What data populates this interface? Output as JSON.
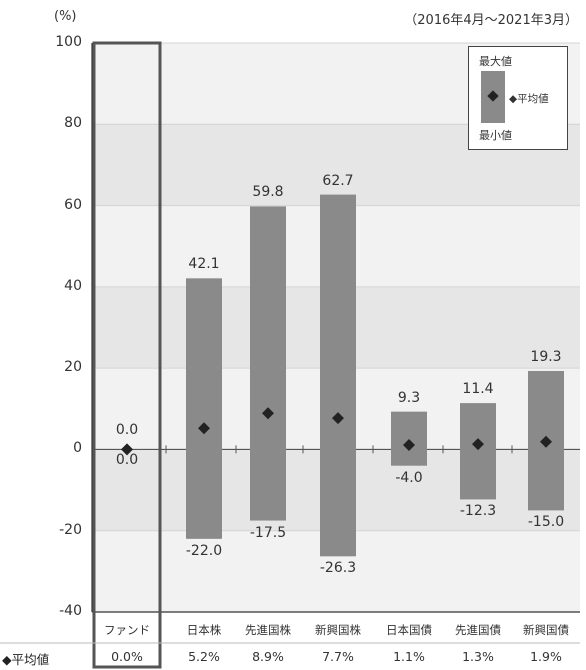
{
  "header": {
    "unit": "(%)",
    "period": "（2016年4月〜2021年3月）"
  },
  "legend": {
    "max": "最大値",
    "avg": "◆平均値",
    "min": "最小値"
  },
  "avg_row_label": "◆平均値",
  "colors": {
    "bar": "#8a8a8a",
    "band_dark": "#e6e6e6",
    "band_light": "#f2f2f2",
    "marker": "#222222",
    "frame": "#555555"
  },
  "chart_data": {
    "type": "bar",
    "subtype": "range-with-average",
    "categories": [
      "ファンド",
      "日本株",
      "先進国株",
      "新興国株",
      "日本国債",
      "先進国債",
      "新興国債"
    ],
    "max_values": [
      0.0,
      42.1,
      59.8,
      62.7,
      9.3,
      11.4,
      19.3
    ],
    "min_values": [
      0.0,
      -22.0,
      -17.5,
      -26.3,
      -4.0,
      -12.3,
      -15.0
    ],
    "avg_values": [
      0.0,
      5.2,
      8.9,
      7.7,
      1.1,
      1.3,
      1.9
    ],
    "max_labels": [
      "0.0",
      "42.1",
      "59.8",
      "62.7",
      "9.3",
      "11.4",
      "19.3"
    ],
    "min_labels": [
      "0.0",
      "-22.0",
      "-17.5",
      "-26.3",
      "-4.0",
      "-12.3",
      "-15.0"
    ],
    "avg_labels": [
      "0.0%",
      "5.2%",
      "8.9%",
      "7.7%",
      "1.1%",
      "1.3%",
      "1.9%"
    ],
    "yticks": [
      "100",
      "80",
      "60",
      "40",
      "20",
      "0",
      "-20",
      "-40"
    ],
    "ylim": [
      -40,
      100
    ],
    "grid": true
  }
}
